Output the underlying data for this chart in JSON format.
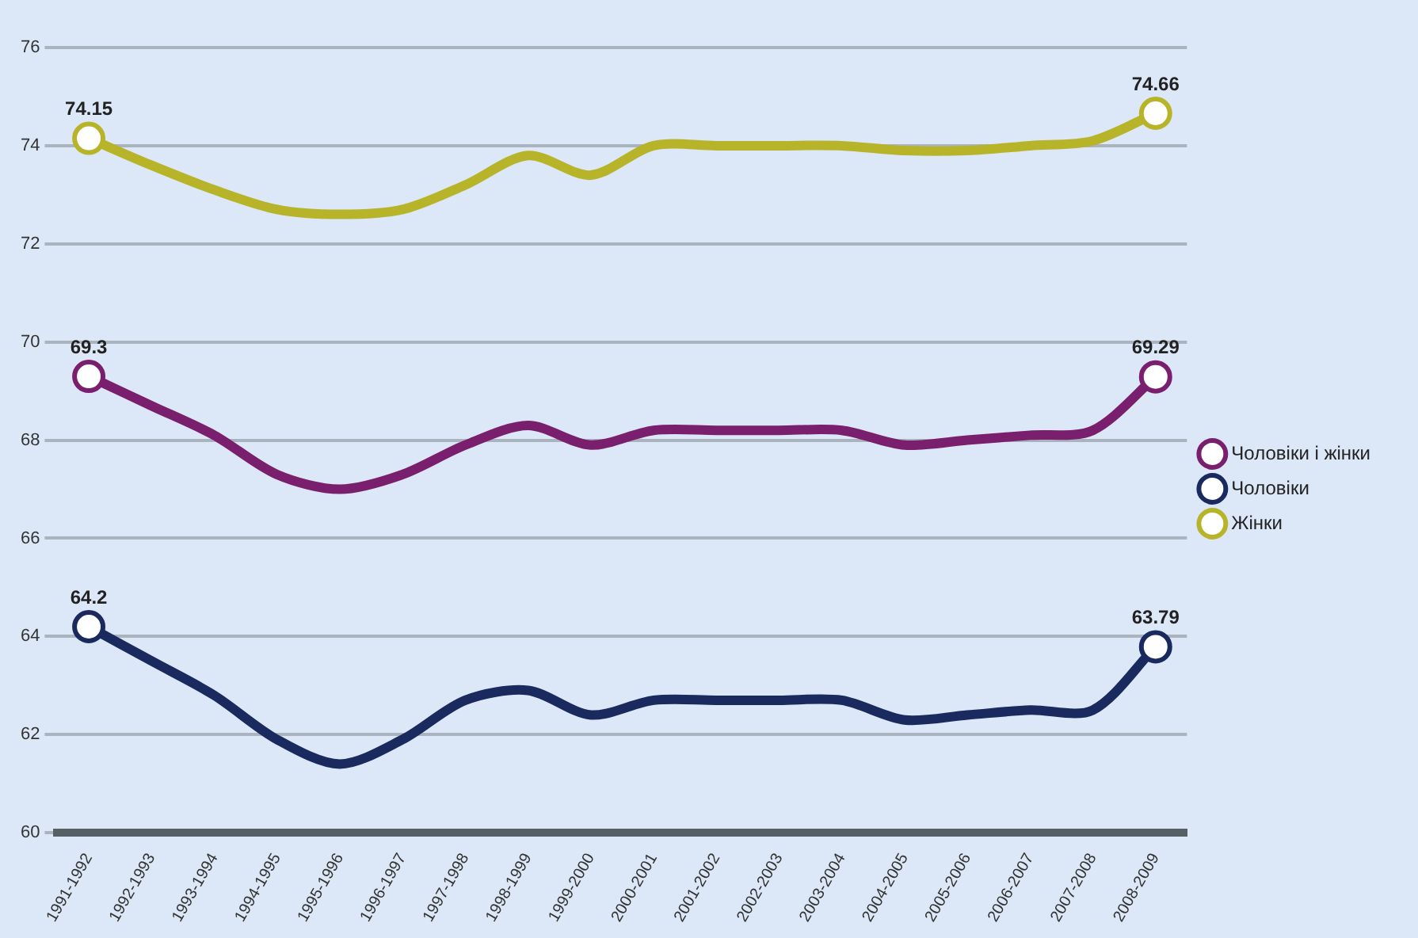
{
  "chart_data": {
    "type": "line",
    "categories": [
      "1991-1992",
      "1992-1993",
      "1993-1994",
      "1994-1995",
      "1995-1996",
      "1996-1997",
      "1997-1998",
      "1998-1999",
      "1999-2000",
      "2000-2001",
      "2001-2002",
      "2002-2003",
      "2003-2004",
      "2004-2005",
      "2005-2006",
      "2006-2007",
      "2007-2008",
      "2008-2009"
    ],
    "series": [
      {
        "name": "Чоловіки і жінки",
        "color": "#7a1f6e",
        "values": [
          69.3,
          68.7,
          68.1,
          67.3,
          67.0,
          67.3,
          67.9,
          68.3,
          67.9,
          68.2,
          68.2,
          68.2,
          68.2,
          67.9,
          68.0,
          68.1,
          68.2,
          69.29
        ],
        "value_labels": [
          "69.3",
          null,
          null,
          null,
          null,
          null,
          null,
          null,
          null,
          null,
          null,
          null,
          null,
          null,
          null,
          null,
          null,
          "69.29"
        ]
      },
      {
        "name": "Чоловіки",
        "color": "#1a2a5e",
        "values": [
          64.2,
          63.5,
          62.8,
          61.9,
          61.4,
          61.9,
          62.7,
          62.9,
          62.4,
          62.7,
          62.7,
          62.7,
          62.7,
          62.3,
          62.4,
          62.5,
          62.5,
          63.79
        ],
        "value_labels": [
          "64.2",
          null,
          null,
          null,
          null,
          null,
          null,
          null,
          null,
          null,
          null,
          null,
          null,
          null,
          null,
          null,
          null,
          "63.79"
        ]
      },
      {
        "name": "Жінки",
        "color": "#b8b42a",
        "values": [
          74.15,
          73.6,
          73.1,
          72.7,
          72.6,
          72.7,
          73.2,
          73.8,
          73.4,
          74.0,
          74.0,
          74.0,
          74.0,
          73.9,
          73.9,
          74.0,
          74.1,
          74.66
        ],
        "value_labels": [
          "74.15",
          null,
          null,
          null,
          null,
          null,
          null,
          null,
          null,
          null,
          null,
          null,
          null,
          null,
          null,
          null,
          null,
          "74.66"
        ]
      }
    ],
    "ylim": [
      60,
      76
    ],
    "yticks": [
      60,
      62,
      64,
      66,
      68,
      70,
      72,
      74,
      76
    ],
    "grid": "y",
    "legend": "right",
    "line_style": "solid"
  }
}
